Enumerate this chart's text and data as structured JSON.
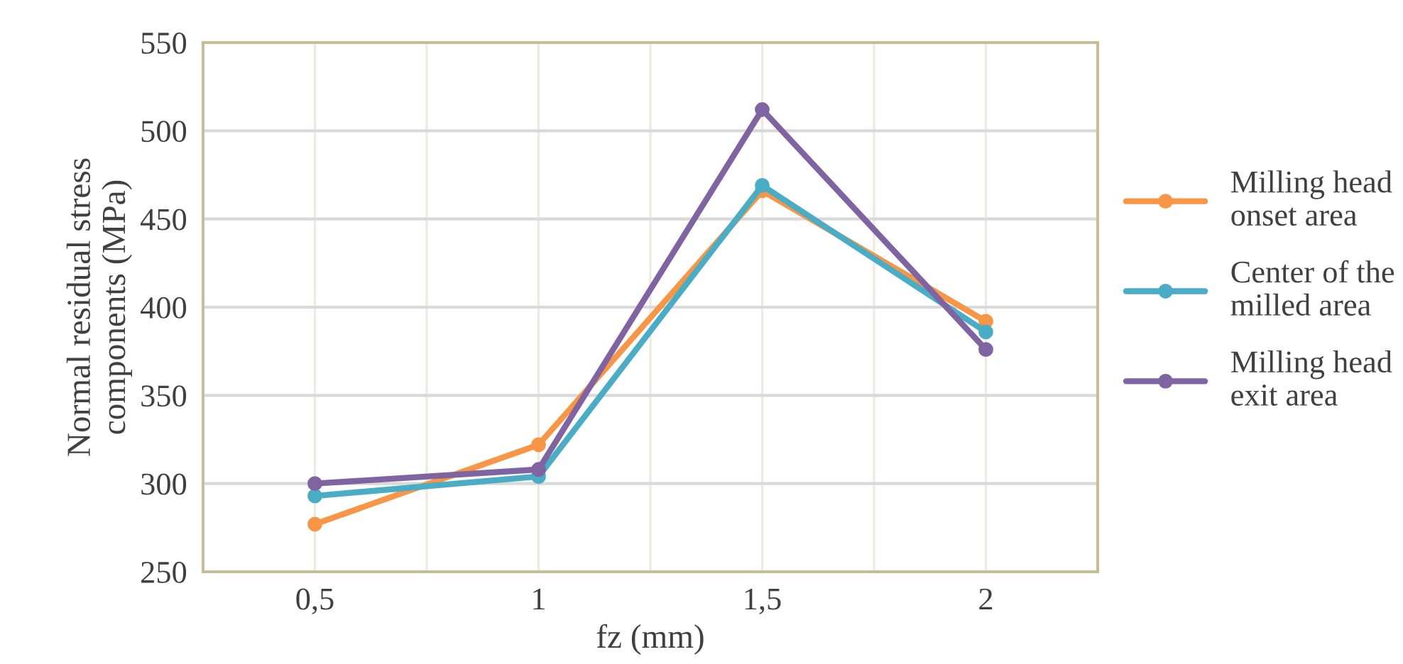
{
  "chart_data": {
    "type": "line",
    "xlabel": "fz (mm)",
    "ylabel": "Normal residual stress\ncomponents (MPa)",
    "categories": [
      "0,5",
      "1",
      "1,5",
      "2"
    ],
    "series": [
      {
        "name": "Milling head\nonset area",
        "color": "#f79646",
        "values": [
          277,
          322,
          466,
          392
        ]
      },
      {
        "name": "Center of the\nmilled area",
        "color": "#4bacc6",
        "values": [
          293,
          304,
          469,
          386
        ]
      },
      {
        "name": "Milling head\nexit area",
        "color": "#8064a2",
        "values": [
          300,
          308,
          512,
          376
        ]
      }
    ],
    "ylim": [
      250,
      550
    ],
    "yticks": [
      250,
      300,
      350,
      400,
      450,
      500,
      550
    ],
    "grid": true,
    "legend": "right",
    "marker": "circle",
    "line_style": "solid"
  }
}
